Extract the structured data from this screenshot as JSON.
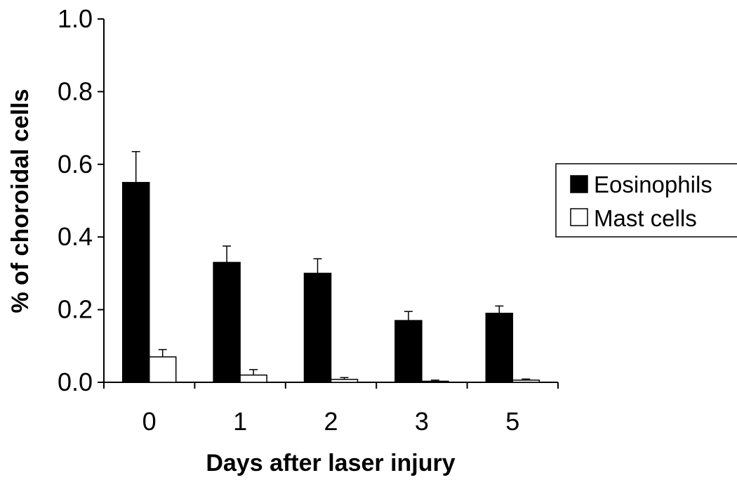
{
  "chart_data": {
    "type": "bar",
    "title": "",
    "xlabel": "Days after laser injury",
    "ylabel": "% of choroidal cells",
    "categories": [
      "0",
      "1",
      "2",
      "3",
      "5"
    ],
    "ylim": [
      0,
      1.0
    ],
    "yticks": [
      "0.0",
      "0.2",
      "0.4",
      "0.6",
      "0.8",
      "1.0"
    ],
    "grid": false,
    "legend_position": "right",
    "series": [
      {
        "name": "Eosinophils",
        "color": "#000000",
        "values": [
          0.55,
          0.33,
          0.3,
          0.17,
          0.19
        ],
        "errors": [
          0.085,
          0.045,
          0.04,
          0.025,
          0.02
        ]
      },
      {
        "name": "Mast cells",
        "color": "#ffffff",
        "values": [
          0.07,
          0.02,
          0.008,
          0.003,
          0.006
        ],
        "errors": [
          0.02,
          0.015,
          0.005,
          0.003,
          0.003
        ]
      }
    ]
  }
}
